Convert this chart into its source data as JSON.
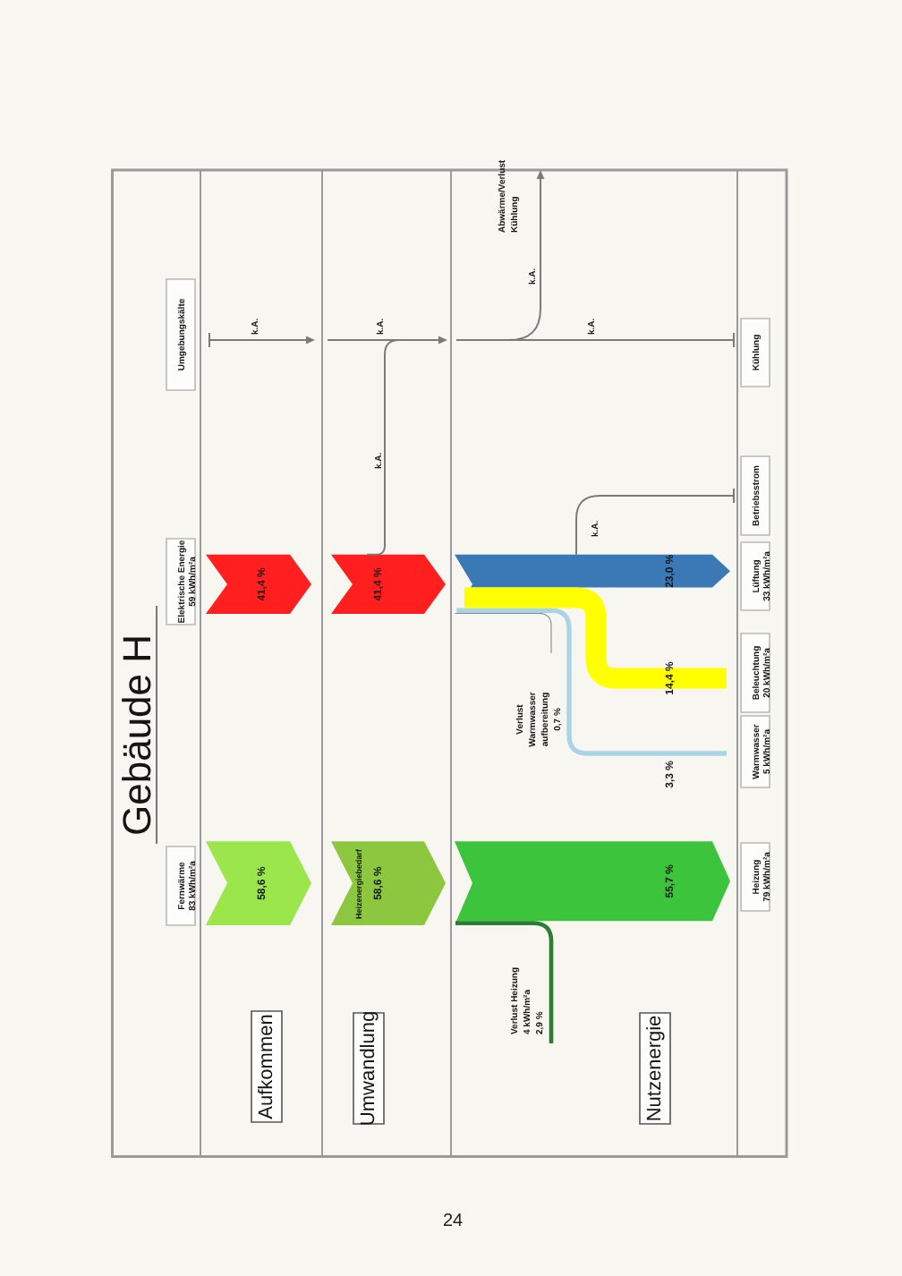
{
  "chart_data": {
    "type": "other",
    "title": "Gebäude H",
    "categories": [
      "Aufkommen",
      "Umwandlung",
      "Nutzenergie"
    ],
    "series": [
      {
        "colors": [
          "#9be64b",
          "#8dc63f",
          "#3cc43c"
        ],
        "values": [
          58.6,
          58.6,
          55.7
        ],
        "value_labels": [
          "58,6 %",
          "58,6 %",
          "55,7 %"
        ]
      },
      {
        "color": "#2e7d32",
        "values": [
          null,
          null,
          2.9
        ],
        "value_labels": [
          null,
          null,
          "2,9 %"
        ]
      },
      {
        "color": "#ff1f1f",
        "values": [
          41.4,
          41.4,
          null
        ],
        "value_labels": [
          "41,4 %",
          "41,4 %",
          null
        ]
      },
      {
        "color": "#8c8c8c",
        "values": [
          null,
          null,
          0.7
        ],
        "value_labels": [
          null,
          null,
          "0,7 %"
        ]
      },
      {
        "color": "#a9d3e6",
        "values": [
          null,
          null,
          3.3
        ],
        "value_labels": [
          null,
          null,
          "3,3 %"
        ]
      },
      {
        "color": "#ffff00",
        "values": [
          null,
          null,
          14.4
        ],
        "value_labels": [
          null,
          null,
          "14,4 %"
        ]
      },
      {
        "color": "#3b78b6",
        "values": [
          null,
          null,
          23.0
        ],
        "value_labels": [
          null,
          null,
          "23,0 %"
        ]
      },
      {
        "color": "#7a7a7a",
        "values": [
          null,
          null,
          null
        ],
        "value_labels": [
          "k.A.",
          "k.A.",
          "k.A."
        ]
      },
      {
        "color": "#7a7a7a",
        "values": [
          null,
          null,
          null
        ],
        "value_labels": [
          null,
          "k.A.",
          null
        ]
      },
      {
        "color": "#7a7a7a",
        "values": [
          null,
          null,
          null
        ],
        "value_labels": [
          null,
          null,
          "k.A."
        ]
      },
      {
        "color": "#7a7a7a",
        "values": [
          null,
          null,
          null
        ],
        "value_labels": [
          null,
          null,
          "k.A."
        ]
      }
    ],
    "annotations": [
      "Fernwärme\n83 kWh/m²a",
      "Elektrische Energie\n59 kWh/m²a",
      "Umgebungskälte",
      "Heizenergiebedarf",
      "Verlust Heizung\n4 kWh/m²a",
      "Verlust\nWarmwasser\naufbereitung",
      "Abwärme/Verlust\nKühlung",
      "Heizung\n79 kWh/m²a",
      "Warmwasser\n5 kWh/m²a",
      "Beleuchtung\n20 kWh/m²a",
      "Lüftung\n33 kWh/m²a",
      "Betriebsstrom",
      "Kühlung",
      "24"
    ]
  }
}
